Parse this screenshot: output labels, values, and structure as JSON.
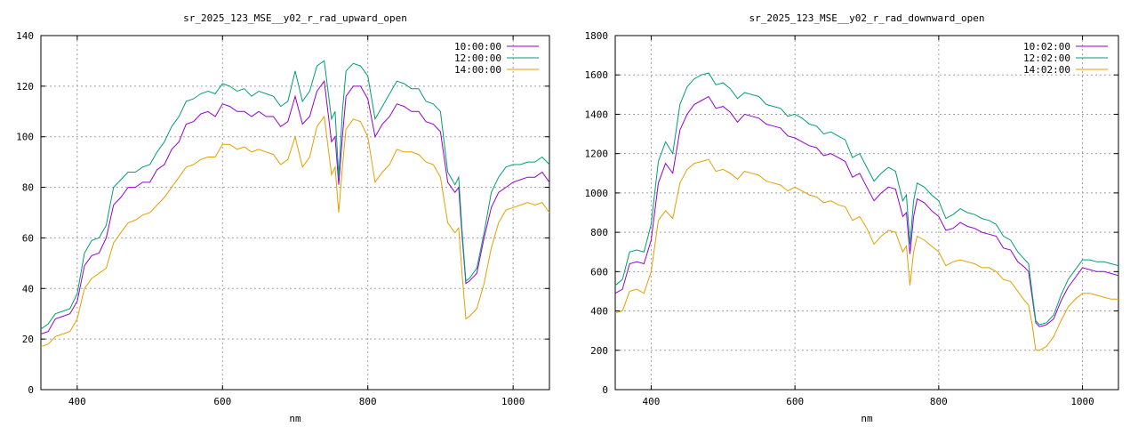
{
  "chart_data": [
    {
      "type": "line",
      "title": "sr_2025_123_MSE__y02_r_rad_upward_open",
      "xlabel": "nm",
      "ylabel": "",
      "xlim": [
        350,
        1050
      ],
      "ylim": [
        0,
        140
      ],
      "xticks": [
        400,
        600,
        800,
        1000
      ],
      "yticks": [
        0,
        20,
        40,
        60,
        80,
        100,
        120,
        140
      ],
      "grid": true,
      "legend": "top-right",
      "series": [
        {
          "name": "10:00:00",
          "color": "#9400d3",
          "x": [
            350,
            360,
            370,
            380,
            390,
            400,
            410,
            420,
            430,
            440,
            450,
            460,
            470,
            480,
            490,
            500,
            510,
            520,
            530,
            540,
            550,
            560,
            570,
            580,
            590,
            600,
            610,
            620,
            630,
            640,
            650,
            660,
            670,
            680,
            690,
            700,
            710,
            720,
            730,
            740,
            750,
            755,
            760,
            765,
            770,
            780,
            790,
            800,
            810,
            820,
            830,
            840,
            850,
            860,
            870,
            880,
            890,
            900,
            910,
            920,
            925,
            930,
            935,
            940,
            950,
            960,
            970,
            980,
            990,
            1000,
            1010,
            1020,
            1030,
            1040,
            1050
          ],
          "y": [
            22,
            23,
            28,
            29,
            30,
            35,
            49,
            53,
            54,
            60,
            73,
            76,
            80,
            80,
            82,
            82,
            87,
            89,
            95,
            98,
            105,
            106,
            109,
            110,
            108,
            113,
            112,
            110,
            110,
            108,
            110,
            108,
            108,
            104,
            106,
            116,
            105,
            108,
            118,
            122,
            98,
            100,
            81,
            100,
            116,
            120,
            120,
            115,
            100,
            105,
            108,
            113,
            112,
            110,
            110,
            106,
            105,
            102,
            82,
            78,
            80,
            60,
            42,
            43,
            46,
            60,
            72,
            78,
            80,
            82,
            83,
            84,
            84,
            86,
            82
          ]
        },
        {
          "name": "12:00:00",
          "color": "#009e73",
          "x": [
            350,
            360,
            370,
            380,
            390,
            400,
            410,
            420,
            430,
            440,
            450,
            460,
            470,
            480,
            490,
            500,
            510,
            520,
            530,
            540,
            550,
            560,
            570,
            580,
            590,
            600,
            610,
            620,
            630,
            640,
            650,
            660,
            670,
            680,
            690,
            700,
            710,
            720,
            730,
            740,
            750,
            755,
            760,
            765,
            770,
            780,
            790,
            800,
            810,
            820,
            830,
            840,
            850,
            860,
            870,
            880,
            890,
            900,
            910,
            920,
            925,
            930,
            935,
            940,
            950,
            960,
            970,
            980,
            990,
            1000,
            1010,
            1020,
            1030,
            1040,
            1050
          ],
          "y": [
            24,
            26,
            30,
            31,
            32,
            38,
            54,
            59,
            60,
            65,
            80,
            83,
            86,
            86,
            88,
            89,
            94,
            98,
            104,
            108,
            114,
            115,
            117,
            118,
            117,
            121,
            120,
            118,
            119,
            116,
            118,
            117,
            116,
            112,
            114,
            126,
            114,
            118,
            128,
            130,
            107,
            110,
            84,
            110,
            126,
            129,
            128,
            124,
            107,
            112,
            117,
            122,
            121,
            119,
            119,
            114,
            113,
            110,
            86,
            81,
            84,
            62,
            43,
            44,
            48,
            62,
            78,
            84,
            88,
            89,
            89,
            90,
            90,
            92,
            89
          ]
        },
        {
          "name": "14:00:00",
          "color": "#e69f00",
          "x": [
            350,
            360,
            370,
            380,
            390,
            400,
            410,
            420,
            430,
            440,
            450,
            460,
            470,
            480,
            490,
            500,
            510,
            520,
            530,
            540,
            550,
            560,
            570,
            580,
            590,
            600,
            610,
            620,
            630,
            640,
            650,
            660,
            670,
            680,
            690,
            700,
            710,
            720,
            730,
            740,
            750,
            755,
            760,
            765,
            770,
            780,
            790,
            800,
            810,
            820,
            830,
            840,
            850,
            860,
            870,
            880,
            890,
            900,
            910,
            920,
            925,
            930,
            935,
            940,
            950,
            960,
            970,
            980,
            990,
            1000,
            1010,
            1020,
            1030,
            1040,
            1050
          ],
          "y": [
            17,
            18,
            21,
            22,
            23,
            28,
            40,
            44,
            46,
            48,
            58,
            62,
            66,
            67,
            69,
            70,
            73,
            76,
            80,
            84,
            88,
            89,
            91,
            92,
            92,
            97,
            97,
            95,
            96,
            94,
            95,
            94,
            93,
            89,
            91,
            100,
            88,
            92,
            104,
            108,
            85,
            88,
            70,
            88,
            103,
            107,
            106,
            100,
            82,
            86,
            89,
            95,
            94,
            94,
            93,
            90,
            89,
            84,
            66,
            62,
            64,
            45,
            28,
            29,
            32,
            42,
            56,
            66,
            71,
            72,
            73,
            74,
            73,
            74,
            70
          ]
        }
      ]
    },
    {
      "type": "line",
      "title": "sr_2025_123_MSE__y02_r_rad_downward_open",
      "xlabel": "nm",
      "ylabel": "",
      "xlim": [
        350,
        1050
      ],
      "ylim": [
        0,
        1800
      ],
      "xticks": [
        400,
        600,
        800,
        1000
      ],
      "yticks": [
        0,
        200,
        400,
        600,
        800,
        1000,
        1200,
        1400,
        1600,
        1800
      ],
      "grid": true,
      "legend": "top-right",
      "series": [
        {
          "name": "10:02:00",
          "color": "#9400d3",
          "x": [
            350,
            360,
            370,
            380,
            390,
            400,
            410,
            420,
            430,
            440,
            450,
            460,
            470,
            480,
            490,
            500,
            510,
            520,
            530,
            540,
            550,
            560,
            570,
            580,
            590,
            600,
            610,
            620,
            630,
            640,
            650,
            660,
            670,
            680,
            690,
            700,
            710,
            720,
            730,
            740,
            750,
            755,
            760,
            765,
            770,
            780,
            790,
            800,
            810,
            820,
            830,
            840,
            850,
            860,
            870,
            880,
            890,
            900,
            910,
            920,
            925,
            930,
            935,
            940,
            950,
            960,
            970,
            980,
            990,
            1000,
            1010,
            1020,
            1030,
            1040,
            1050
          ],
          "y": [
            490,
            510,
            640,
            650,
            640,
            760,
            1050,
            1150,
            1100,
            1320,
            1400,
            1450,
            1470,
            1490,
            1430,
            1440,
            1410,
            1360,
            1400,
            1390,
            1380,
            1350,
            1340,
            1330,
            1290,
            1280,
            1260,
            1240,
            1230,
            1190,
            1200,
            1180,
            1160,
            1080,
            1100,
            1030,
            960,
            1000,
            1030,
            1020,
            880,
            900,
            690,
            880,
            970,
            950,
            910,
            880,
            810,
            820,
            850,
            830,
            820,
            800,
            790,
            780,
            720,
            710,
            650,
            620,
            600,
            470,
            340,
            320,
            330,
            360,
            450,
            520,
            570,
            620,
            610,
            600,
            600,
            590,
            580
          ]
        },
        {
          "name": "12:02:00",
          "color": "#009e73",
          "x": [
            350,
            360,
            370,
            380,
            390,
            400,
            410,
            420,
            430,
            440,
            450,
            460,
            470,
            480,
            490,
            500,
            510,
            520,
            530,
            540,
            550,
            560,
            570,
            580,
            590,
            600,
            610,
            620,
            630,
            640,
            650,
            660,
            670,
            680,
            690,
            700,
            710,
            720,
            730,
            740,
            750,
            755,
            760,
            765,
            770,
            780,
            790,
            800,
            810,
            820,
            830,
            840,
            850,
            860,
            870,
            880,
            890,
            900,
            910,
            920,
            925,
            930,
            935,
            940,
            950,
            960,
            970,
            980,
            990,
            1000,
            1010,
            1020,
            1030,
            1040,
            1050
          ],
          "y": [
            530,
            560,
            700,
            710,
            700,
            840,
            1160,
            1260,
            1200,
            1450,
            1540,
            1580,
            1600,
            1610,
            1550,
            1560,
            1530,
            1480,
            1510,
            1500,
            1490,
            1450,
            1440,
            1430,
            1390,
            1400,
            1380,
            1350,
            1340,
            1300,
            1310,
            1290,
            1270,
            1180,
            1200,
            1130,
            1060,
            1100,
            1130,
            1110,
            960,
            990,
            740,
            960,
            1050,
            1030,
            990,
            960,
            870,
            890,
            920,
            900,
            890,
            870,
            860,
            840,
            780,
            760,
            700,
            660,
            640,
            490,
            350,
            330,
            340,
            380,
            480,
            560,
            610,
            660,
            660,
            650,
            650,
            640,
            630
          ]
        },
        {
          "name": "14:02:00",
          "color": "#e69f00",
          "x": [
            350,
            360,
            370,
            380,
            390,
            400,
            410,
            420,
            430,
            440,
            450,
            460,
            470,
            480,
            490,
            500,
            510,
            520,
            530,
            540,
            550,
            560,
            570,
            580,
            590,
            600,
            610,
            620,
            630,
            640,
            650,
            660,
            670,
            680,
            690,
            700,
            710,
            720,
            730,
            740,
            750,
            755,
            760,
            765,
            770,
            780,
            790,
            800,
            810,
            820,
            830,
            840,
            850,
            860,
            870,
            880,
            890,
            900,
            910,
            920,
            925,
            930,
            935,
            940,
            950,
            960,
            970,
            980,
            990,
            1000,
            1010,
            1020,
            1030,
            1040,
            1050
          ],
          "y": [
            390,
            400,
            500,
            510,
            490,
            600,
            860,
            910,
            870,
            1050,
            1120,
            1150,
            1160,
            1170,
            1110,
            1120,
            1100,
            1070,
            1110,
            1100,
            1090,
            1060,
            1050,
            1040,
            1010,
            1030,
            1010,
            990,
            980,
            950,
            960,
            940,
            930,
            860,
            880,
            820,
            740,
            780,
            810,
            800,
            700,
            730,
            530,
            700,
            780,
            760,
            730,
            700,
            630,
            650,
            660,
            650,
            640,
            620,
            620,
            600,
            560,
            550,
            500,
            450,
            430,
            330,
            200,
            200,
            220,
            270,
            350,
            420,
            460,
            490,
            490,
            480,
            470,
            460,
            460
          ]
        }
      ]
    }
  ]
}
